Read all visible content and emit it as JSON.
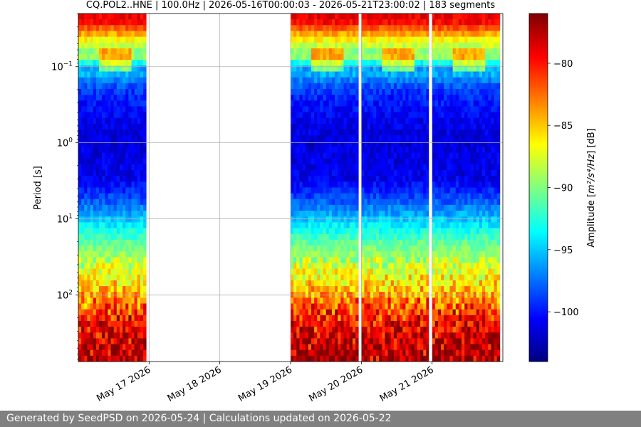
{
  "chart_data": {
    "type": "heatmap",
    "title": "CQ.POL2..HNE | 100.0Hz | 2026-05-16T00:00:03 - 2026-05-21T23:00:02 | 183 segments",
    "ylabel": "Period [s]",
    "xlabel": "",
    "y_scale": "log",
    "y_inverted": true,
    "ylim_period_s": [
      0.02,
      750
    ],
    "y_ticks": [
      {
        "label": "10",
        "exp": "−1",
        "value": 0.1
      },
      {
        "label": "10",
        "exp": "0",
        "value": 1
      },
      {
        "label": "10",
        "exp": "1",
        "value": 10
      },
      {
        "label": "10",
        "exp": "2",
        "value": 100
      }
    ],
    "x_range_days": [
      "2026-05-16T00:00",
      "2026-05-22T00:00"
    ],
    "x_ticks": [
      {
        "label": "May 17 2026",
        "date": "2026-05-17"
      },
      {
        "label": "May 18 2026",
        "date": "2026-05-18"
      },
      {
        "label": "May 19 2026",
        "date": "2026-05-19"
      },
      {
        "label": "May 20 2026",
        "date": "2026-05-20"
      },
      {
        "label": "May 21 2026",
        "date": "2026-05-21"
      }
    ],
    "data_segments": [
      {
        "start": "2026-05-16T00:00",
        "end": "2026-05-16T23:00"
      },
      {
        "start": "2026-05-19T00:00",
        "end": "2026-05-19T23:00"
      },
      {
        "start": "2026-05-20T00:00",
        "end": "2026-05-20T22:50"
      },
      {
        "start": "2026-05-21T00:00",
        "end": "2026-05-21T23:00"
      }
    ],
    "amplitude_profile_db": [
      {
        "period_s": 0.025,
        "db": -79
      },
      {
        "period_s": 0.05,
        "db": -88
      },
      {
        "period_s": 0.075,
        "db": -88
      },
      {
        "period_s": 0.1,
        "db": -94
      },
      {
        "period_s": 0.2,
        "db": -99
      },
      {
        "period_s": 0.5,
        "db": -101
      },
      {
        "period_s": 1,
        "db": -101.5
      },
      {
        "period_s": 3,
        "db": -101
      },
      {
        "period_s": 6,
        "db": -98
      },
      {
        "period_s": 10,
        "db": -95
      },
      {
        "period_s": 20,
        "db": -91
      },
      {
        "period_s": 40,
        "db": -88
      },
      {
        "period_s": 100,
        "db": -84
      },
      {
        "period_s": 200,
        "db": -80
      },
      {
        "period_s": 400,
        "db": -78
      },
      {
        "period_s": 750,
        "db": -77
      }
    ],
    "grid": true,
    "colorbar": {
      "label_prefix": "Amplitude [",
      "label_unit": "m²/s⁴/Hz",
      "label_suffix": "] [dB]",
      "range_db": [
        -104,
        -76
      ],
      "ticks": [
        {
          "label": "−80",
          "value": -80
        },
        {
          "label": "−85",
          "value": -85
        },
        {
          "label": "−90",
          "value": -90
        },
        {
          "label": "−95",
          "value": -95
        },
        {
          "label": "−100",
          "value": -100
        }
      ],
      "colormap": "jet"
    }
  },
  "footer": {
    "text": "Generated by SeedPSD on 2026-05-24 | Calculations updated on 2026-05-22"
  },
  "colors": {
    "footer_bg": "#808080",
    "footer_text": "#ffffff",
    "grid": "#b0b0b0"
  }
}
